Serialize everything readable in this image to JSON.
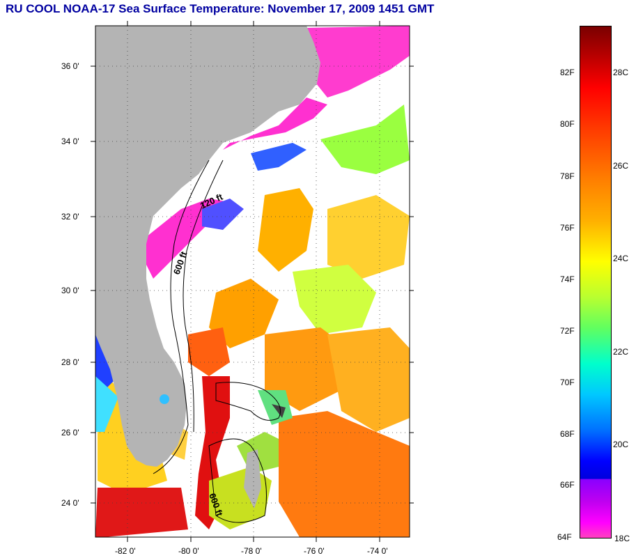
{
  "title": "RU COOL  NOAA-17  Sea Surface Temperature:  November 17, 2009 1451 GMT",
  "map": {
    "lat_labels": [
      "36 0'",
      "34 0'",
      "32 0'",
      "30 0'",
      "28 0'",
      "26 0'",
      "24 0'"
    ],
    "lon_labels": [
      "-82 0'",
      "-80 0'",
      "-78 0'",
      "-76 0'",
      "-74 0'"
    ],
    "contours": [
      "120 ft",
      "600 ft",
      "600 ft"
    ]
  },
  "colorbar": {
    "fahrenheit": [
      "82F",
      "80F",
      "78F",
      "76F",
      "74F",
      "72F",
      "70F",
      "68F",
      "66F",
      "64F"
    ],
    "celsius": [
      "28C",
      "26C",
      "24C",
      "22C",
      "20C",
      "18C"
    ],
    "range_f": [
      64,
      84
    ],
    "range_c": [
      18,
      29
    ]
  },
  "colors": {
    "title": "#0000a0",
    "land": "#b4b4b4",
    "ocean_clouds": "#ffffff"
  }
}
